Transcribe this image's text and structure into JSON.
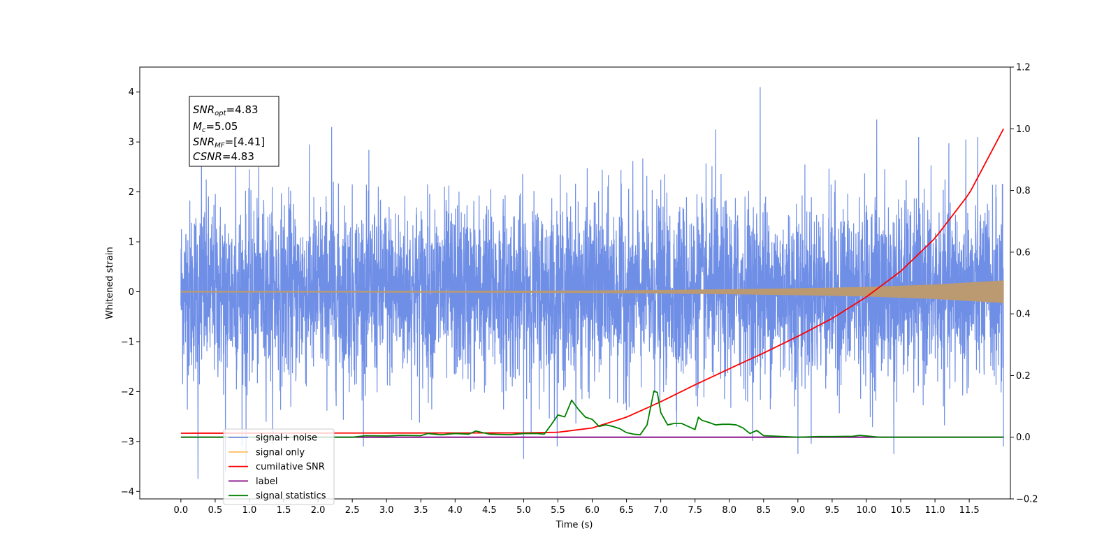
{
  "chart_data": {
    "type": "line",
    "xlabel": "Time (s)",
    "ylabel": "Whitened strain",
    "xlim": [
      -0.6,
      12.1
    ],
    "ylim": [
      -4.15,
      4.5
    ],
    "y2lim": [
      -0.2,
      1.2
    ],
    "x_ticks": [
      0.0,
      0.5,
      1.0,
      1.5,
      2.0,
      2.5,
      3.0,
      3.5,
      4.0,
      4.5,
      5.0,
      5.5,
      6.0,
      6.5,
      7.0,
      7.5,
      8.0,
      8.5,
      9.0,
      9.5,
      10.0,
      10.5,
      11.0,
      11.5
    ],
    "x_tick_labels": [
      "0.0",
      "0.5",
      "1.0",
      "1.5",
      "2.0",
      "2.5",
      "3.0",
      "3.5",
      "4.0",
      "4.5",
      "5.0",
      "5.5",
      "6.0",
      "6.5",
      "7.0",
      "7.5",
      "8.0",
      "8.5",
      "9.0",
      "9.5",
      "10.0",
      "10.5",
      "11.0",
      "11.5"
    ],
    "y_ticks": [
      -4,
      -3,
      -2,
      -1,
      0,
      1,
      2,
      3,
      4
    ],
    "y_tick_labels": [
      "−4",
      "−3",
      "−2",
      "−1",
      "0",
      "1",
      "2",
      "3",
      "4"
    ],
    "y2_ticks": [
      -0.2,
      0.0,
      0.2,
      0.4,
      0.6,
      0.8,
      1.0,
      1.2
    ],
    "y2_tick_labels": [
      "−0.2",
      "0.0",
      "0.2",
      "0.4",
      "0.6",
      "0.8",
      "1.0",
      "1.2"
    ],
    "legend": {
      "position": "lower-left",
      "entries": [
        {
          "label": "signal+ noise",
          "color": "#6f8ee6"
        },
        {
          "label": "signal only",
          "color": "#ffbf66"
        },
        {
          "label": "cumilative SNR",
          "color": "#ff0000"
        },
        {
          "label": "label",
          "color": "#800080"
        },
        {
          "label": "signal statistics",
          "color": "#008000"
        }
      ]
    },
    "annotation": {
      "snr_opt": {
        "name": "SNR",
        "sub": "opt",
        "value": "=4.83"
      },
      "mc": {
        "name": "M",
        "sub": "c",
        "value": "=5.05"
      },
      "snr_mf": {
        "name": "SNR",
        "sub": "MF",
        "value": "=[4.41]"
      },
      "csnr": {
        "name": "CSNR",
        "sub": "",
        "value": "=4.83"
      }
    },
    "series": [
      {
        "name": "signal+ noise",
        "axis": "left",
        "color": "#6f8ee6",
        "x_range": [
          0.0,
          12.0
        ],
        "typical_envelope": [
          -1.8,
          1.8
        ],
        "peaks": [
          [
            0.3,
            3.4
          ],
          [
            0.8,
            3.2
          ],
          [
            2.2,
            3.3
          ],
          [
            8.45,
            4.1
          ],
          [
            7.8,
            3.25
          ],
          [
            10.15,
            3.45
          ],
          [
            11.45,
            3.05
          ],
          [
            0.25,
            -3.75
          ],
          [
            0.65,
            -3.6
          ],
          [
            0.95,
            -3.5
          ],
          [
            5.0,
            -3.35
          ],
          [
            9.0,
            -3.25
          ],
          [
            10.4,
            -3.25
          ],
          [
            12.0,
            -3.1
          ]
        ]
      },
      {
        "name": "signal only",
        "axis": "left",
        "color": "#ffbf66",
        "x": [
          0,
          2,
          4,
          5,
          6,
          7,
          8,
          9,
          10,
          11,
          12
        ],
        "amplitude": [
          0.01,
          0.01,
          0.012,
          0.015,
          0.02,
          0.03,
          0.045,
          0.065,
          0.09,
          0.14,
          0.22
        ]
      },
      {
        "name": "cumilative SNR",
        "axis": "right",
        "color": "#ff0000",
        "x": [
          0,
          5,
          5.5,
          6,
          6.5,
          7,
          7.5,
          8,
          8.5,
          9,
          9.5,
          10,
          10.5,
          11,
          11.5,
          12
        ],
        "values": [
          0.013,
          0.014,
          0.016,
          0.03,
          0.065,
          0.115,
          0.17,
          0.222,
          0.273,
          0.327,
          0.385,
          0.455,
          0.538,
          0.645,
          0.79,
          1.0
        ]
      },
      {
        "name": "label",
        "axis": "right",
        "color": "#800080",
        "x": [
          0,
          12
        ],
        "values": [
          0.0,
          0.0
        ]
      },
      {
        "name": "signal statistics",
        "axis": "right",
        "color": "#008000",
        "x": [
          0,
          2.5,
          2.7,
          3.0,
          3.2,
          3.5,
          3.6,
          3.8,
          4.0,
          4.2,
          4.3,
          4.5,
          4.8,
          5.0,
          5.2,
          5.3,
          5.4,
          5.5,
          5.6,
          5.7,
          5.8,
          5.9,
          6.0,
          6.1,
          6.2,
          6.3,
          6.4,
          6.5,
          6.6,
          6.7,
          6.8,
          6.9,
          6.95,
          7.0,
          7.1,
          7.2,
          7.3,
          7.4,
          7.5,
          7.55,
          7.6,
          7.7,
          7.8,
          7.9,
          8.0,
          8.1,
          8.2,
          8.3,
          8.4,
          8.5,
          9.0,
          9.3,
          9.5,
          9.8,
          9.9,
          10.0,
          10.2,
          12.0
        ],
        "values": [
          0.0,
          0.0,
          0.005,
          0.004,
          0.006,
          0.005,
          0.012,
          0.008,
          0.012,
          0.01,
          0.02,
          0.01,
          0.008,
          0.012,
          0.012,
          0.01,
          0.04,
          0.072,
          0.066,
          0.12,
          0.09,
          0.065,
          0.058,
          0.035,
          0.04,
          0.035,
          0.028,
          0.015,
          0.01,
          0.008,
          0.04,
          0.15,
          0.145,
          0.08,
          0.04,
          0.045,
          0.045,
          0.035,
          0.025,
          0.065,
          0.055,
          0.048,
          0.04,
          0.042,
          0.042,
          0.04,
          0.03,
          0.012,
          0.022,
          0.005,
          0.0,
          0.002,
          0.002,
          0.003,
          0.006,
          0.004,
          0.0,
          0.0
        ]
      }
    ]
  }
}
